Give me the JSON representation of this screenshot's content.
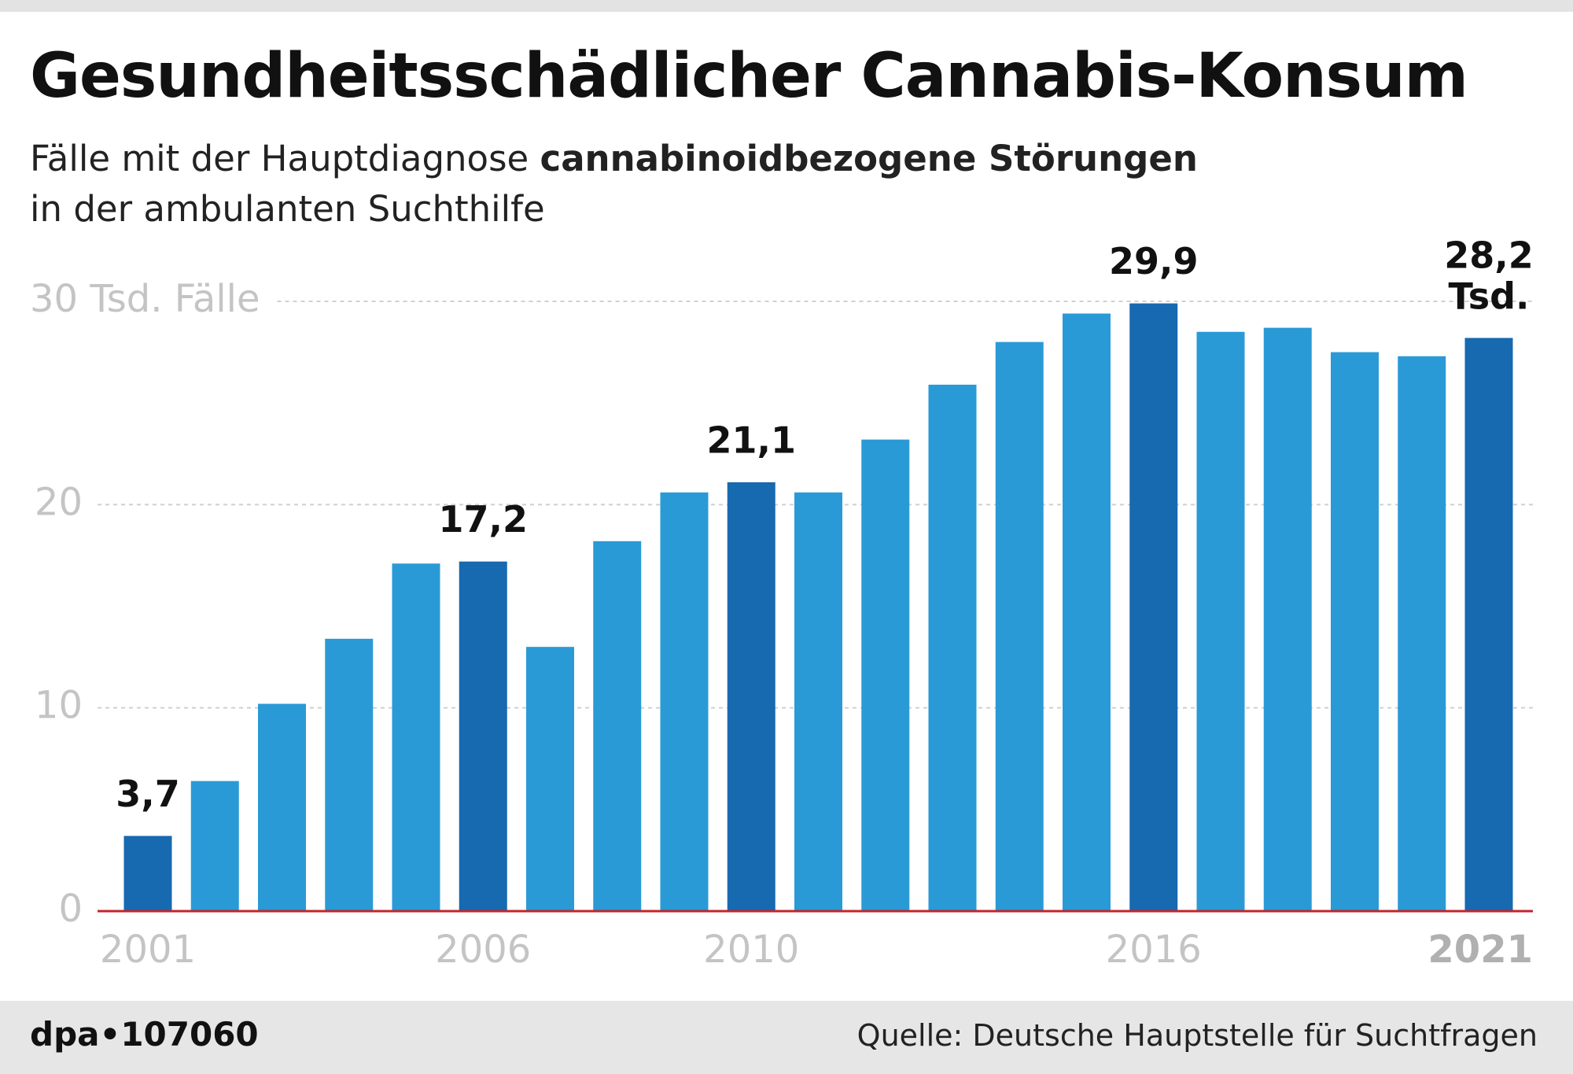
{
  "chart_data": {
    "type": "bar",
    "title": "Gesundheitsschädlicher Cannabis-Konsum",
    "subtitle": [
      "Fälle mit der Hauptdiagnose ",
      "cannabinoidbezogene Störungen",
      "in der ambulanten Suchthilfe"
    ],
    "categories": [
      "2001",
      null,
      null,
      null,
      null,
      "2006",
      null,
      null,
      null,
      "2010",
      null,
      null,
      null,
      null,
      null,
      "2016",
      null,
      null,
      null,
      null,
      "2021"
    ],
    "values": [
      3.7,
      6.4,
      10.2,
      13.4,
      17.1,
      17.2,
      13.0,
      18.2,
      20.6,
      21.1,
      20.6,
      23.2,
      25.9,
      28.0,
      29.4,
      29.9,
      28.5,
      28.7,
      27.5,
      27.3,
      28.2
    ],
    "value_labels": [
      "3,7",
      null,
      null,
      null,
      null,
      "17,2",
      null,
      null,
      null,
      "21,1",
      null,
      null,
      null,
      null,
      null,
      "29,9",
      null,
      null,
      null,
      null,
      "28,2 Tsd."
    ],
    "color": "#2a9ad6",
    "highlight_color": "#1769b0",
    "ylim": [
      0,
      30
    ],
    "yticks": [
      0,
      10,
      20,
      {
        "value": 30,
        "label": "30 Tsd. Fälle"
      }
    ],
    "grid": true,
    "source": "Quelle: Deutsche Hauptstelle für Suchtfragen",
    "credit": "dpa•107060"
  }
}
